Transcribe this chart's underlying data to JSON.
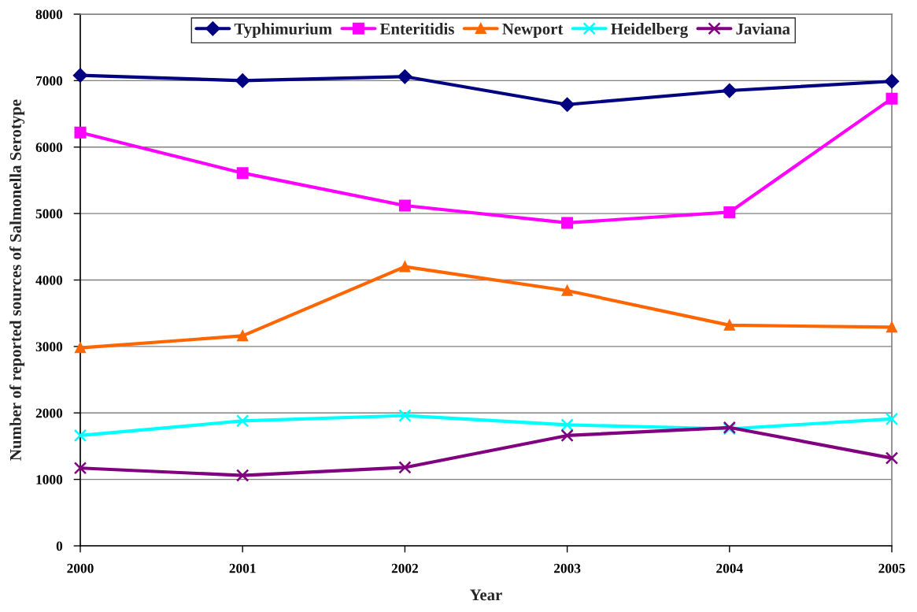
{
  "chart_data": {
    "type": "line",
    "xlabel": "Year",
    "ylabel": "Number of reported sources of Salmonella Serotype",
    "x": [
      2000,
      2001,
      2002,
      2003,
      2004,
      2005
    ],
    "xlim": [
      2000,
      2005
    ],
    "xticks": [
      2000,
      2001,
      2002,
      2003,
      2004,
      2005
    ],
    "ylim": [
      0,
      8000
    ],
    "yticks": [
      0,
      1000,
      2000,
      3000,
      4000,
      5000,
      6000,
      7000,
      8000
    ],
    "grid": "y",
    "legend": "top",
    "line_style": "solid",
    "series": [
      {
        "name": "Typhimurium",
        "color": "#000080",
        "marker": "diamond",
        "values": [
          7080,
          7000,
          7060,
          6640,
          6850,
          6990
        ]
      },
      {
        "name": "Enteritidis",
        "color": "#ff00ff",
        "marker": "square",
        "values": [
          6220,
          5610,
          5120,
          4860,
          5020,
          6730
        ]
      },
      {
        "name": "Newport",
        "color": "#ff6600",
        "marker": "triangle",
        "values": [
          2980,
          3160,
          4200,
          3840,
          3320,
          3290
        ]
      },
      {
        "name": "Heidelberg",
        "color": "#00ffff",
        "marker": "cross",
        "values": [
          1660,
          1880,
          1960,
          1820,
          1760,
          1910
        ]
      },
      {
        "name": "Javiana",
        "color": "#800080",
        "marker": "cross",
        "values": [
          1170,
          1060,
          1180,
          1660,
          1780,
          1320
        ]
      }
    ]
  }
}
